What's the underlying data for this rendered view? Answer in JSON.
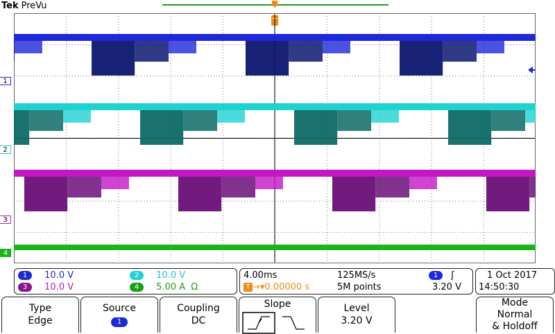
{
  "header": {
    "brand": "Tek",
    "mode": "PreVu"
  },
  "trigger": {
    "position_marker": "T"
  },
  "channels": [
    {
      "id": "1",
      "color": "#1e28d8",
      "dark": "#0b1670",
      "scale": "10.0 V"
    },
    {
      "id": "2",
      "color": "#1ed2d2",
      "dark": "#0d6a66",
      "scale": "10.0 V"
    },
    {
      "id": "3",
      "color": "#c416c4",
      "dark": "#6a0f78",
      "scale": "10.0 V"
    },
    {
      "id": "4",
      "color": "#18b418",
      "dark": "#0c7a0c",
      "scale": "5.00 A",
      "unit_symbol": "Ω"
    }
  ],
  "timebase": {
    "scale": "4.00ms",
    "sample_rate": "125MS/s",
    "delay": "▾0.00000 s",
    "record_length": "5M points"
  },
  "trigger_readout": {
    "source": "1",
    "slope_symbol": "ʃ",
    "level": "3.20 V"
  },
  "datetime": {
    "date": "1 Oct  2017",
    "time": "14:50:30"
  },
  "softkeys": {
    "type": {
      "title": "Type",
      "value": "Edge"
    },
    "source": {
      "title": "Source",
      "value": "1"
    },
    "coupling": {
      "title": "Coupling",
      "value": "DC"
    },
    "slope": {
      "title": "Slope"
    },
    "level": {
      "title": "Level",
      "value": "3.20 V"
    },
    "mode": {
      "title": "Mode",
      "value": "Normal",
      "value2": "& Holdoff"
    }
  }
}
